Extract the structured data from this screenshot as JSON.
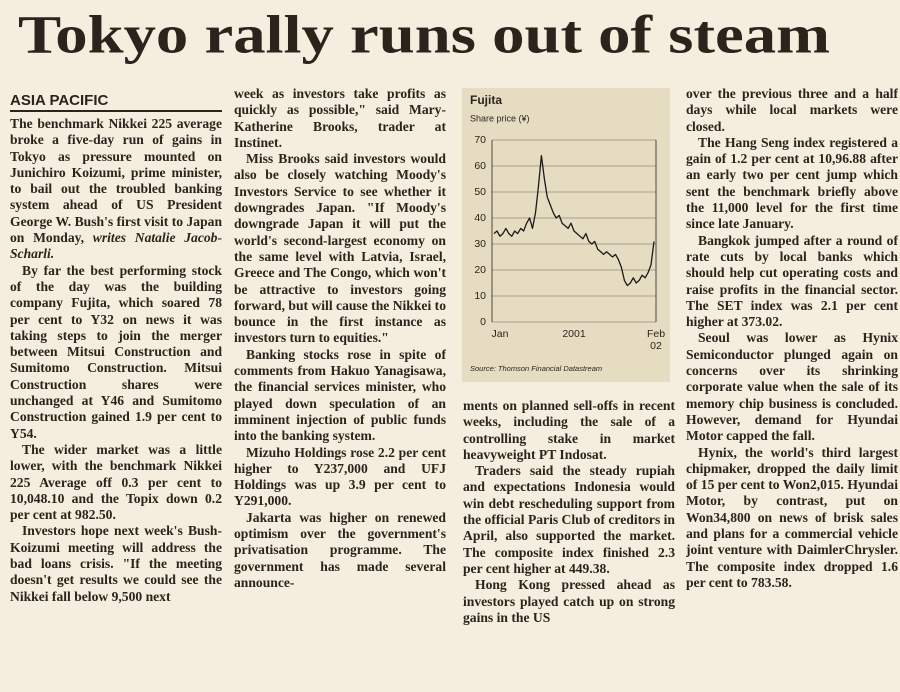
{
  "headline": "Tokyo rally runs out of steam",
  "columns": [
    {
      "heading": "ASIA PACIFIC",
      "paragraphs": [
        [
          "The benchmark Nikkei 225 average broke a five-day run of gains in ",
          "Tokyo",
          " as pressure mounted on Junichiro Koizumi, prime minister, to bail out the troubled banking system ahead of US President George W. Bush's first visit to Japan on Monday, ",
          "writes Natalie Jacob-Scharli."
        ],
        [
          "By far the best performing stock of the day was the building company Fujita, which soared 78 per cent to Y32 on news it was taking steps to join the merger between Mitsui Construction and Sumitomo Construction. Mitsui Construction shares were unchanged at Y46 and Sumitomo Construction gained 1.9 per cent to Y54."
        ],
        [
          "The wider market was a little lower, with the benchmark Nikkei 225 Average off 0.3 per cent to 10,048.10 and the Topix down 0.2 per cent at 982.50."
        ],
        [
          "Investors hope next week's Bush-Koizumi meeting will address the bad loans crisis. \"If the meeting doesn't get results we could see the Nikkei fall below 9,500 next"
        ]
      ]
    },
    {
      "paragraphs": [
        [
          "week as investors take profits as quickly as possible,\" said Mary-Katherine Brooks, trader at Instinet."
        ],
        [
          "Miss Brooks said investors would also be closely watching Moody's Investors Service to see whether it downgrades Japan. \"If Moody's downgrade Japan it will put the world's second-largest economy on the same level with Latvia, Israel, Greece and The Congo, which won't be attractive to investors going forward, but will cause the Nikkei to bounce in the first instance as investors turn to equities.\""
        ],
        [
          "Banking stocks rose in spite of comments from Hakuo Yanagisawa, the financial services minister, who played down speculation of an imminent injection of public funds into the banking system."
        ],
        [
          "Mizuho Holdings rose 2.2 per cent higher to Y237,000 and UFJ Holdings was up 3.9 per cent to Y291,000."
        ],
        [
          "Jakarta",
          " was higher on renewed optimism over the government's privatisation programme. The government has made several announce-"
        ]
      ]
    },
    {
      "paragraphs": [
        [
          "ments on planned sell-offs in recent weeks, including the sale of a controlling stake in market heavyweight PT Indosat."
        ],
        [
          "Traders said the steady rupiah and expectations Indonesia would win debt rescheduling support from the official Paris Club of creditors in April, also supported the market. The composite index finished 2.3 per cent higher at 449.38."
        ],
        [
          "Hong Kong",
          " pressed ahead as investors played catch up on strong gains in the US"
        ]
      ]
    },
    {
      "paragraphs": [
        [
          "over the previous three and a half days while local markets were closed."
        ],
        [
          "The Hang Seng index registered a gain of 1.2 per cent at 10,96.88 after an early two per cent jump which sent the benchmark briefly above the 11,000 level for the first time since late January."
        ],
        [
          "Bangkok",
          " jumped after a round of rate cuts by local banks which should help cut operating costs and raise profits in the financial sector. The SET index was 2.1 per cent higher at 373.02."
        ],
        [
          "Seoul",
          " was lower as Hynix Semiconductor plunged again on concerns over its shrinking corporate value when the sale of its memory chip business is concluded. However, demand for Hyundai Motor capped the fall."
        ],
        [
          "Hynix, the world's third largest chipmaker, dropped the daily limit of 15 per cent to Won2,015. Hyundai Motor, by contrast, put on Won34,800 on news of brisk sales and plans for a commercial vehicle joint venture with DaimlerChrysler. The composite index dropped 1.6 per cent to 783.58."
        ]
      ]
    }
  ],
  "chart_data": {
    "type": "line",
    "title": "Fujita",
    "y_label": "Share price (¥)",
    "source": "Source: Thomson Financial Datastream",
    "x_labels": [
      "Jan",
      "2001",
      "Feb 02"
    ],
    "values": [
      34,
      35,
      33,
      34,
      36,
      34,
      33,
      35,
      34,
      36,
      35,
      38,
      40,
      36,
      42,
      52,
      64,
      55,
      48,
      45,
      42,
      40,
      41,
      38,
      37,
      36,
      38,
      35,
      34,
      33,
      32,
      34,
      31,
      30,
      31,
      28,
      27,
      26,
      27,
      26,
      25,
      26,
      24,
      21,
      16,
      14,
      15,
      17,
      15,
      16,
      18,
      17,
      19,
      22,
      31
    ],
    "color": "#1a1a1a",
    "ylim": [
      0,
      70
    ],
    "yticks": [
      0,
      10,
      20,
      30,
      40,
      50,
      60,
      70
    ],
    "grid": true
  }
}
